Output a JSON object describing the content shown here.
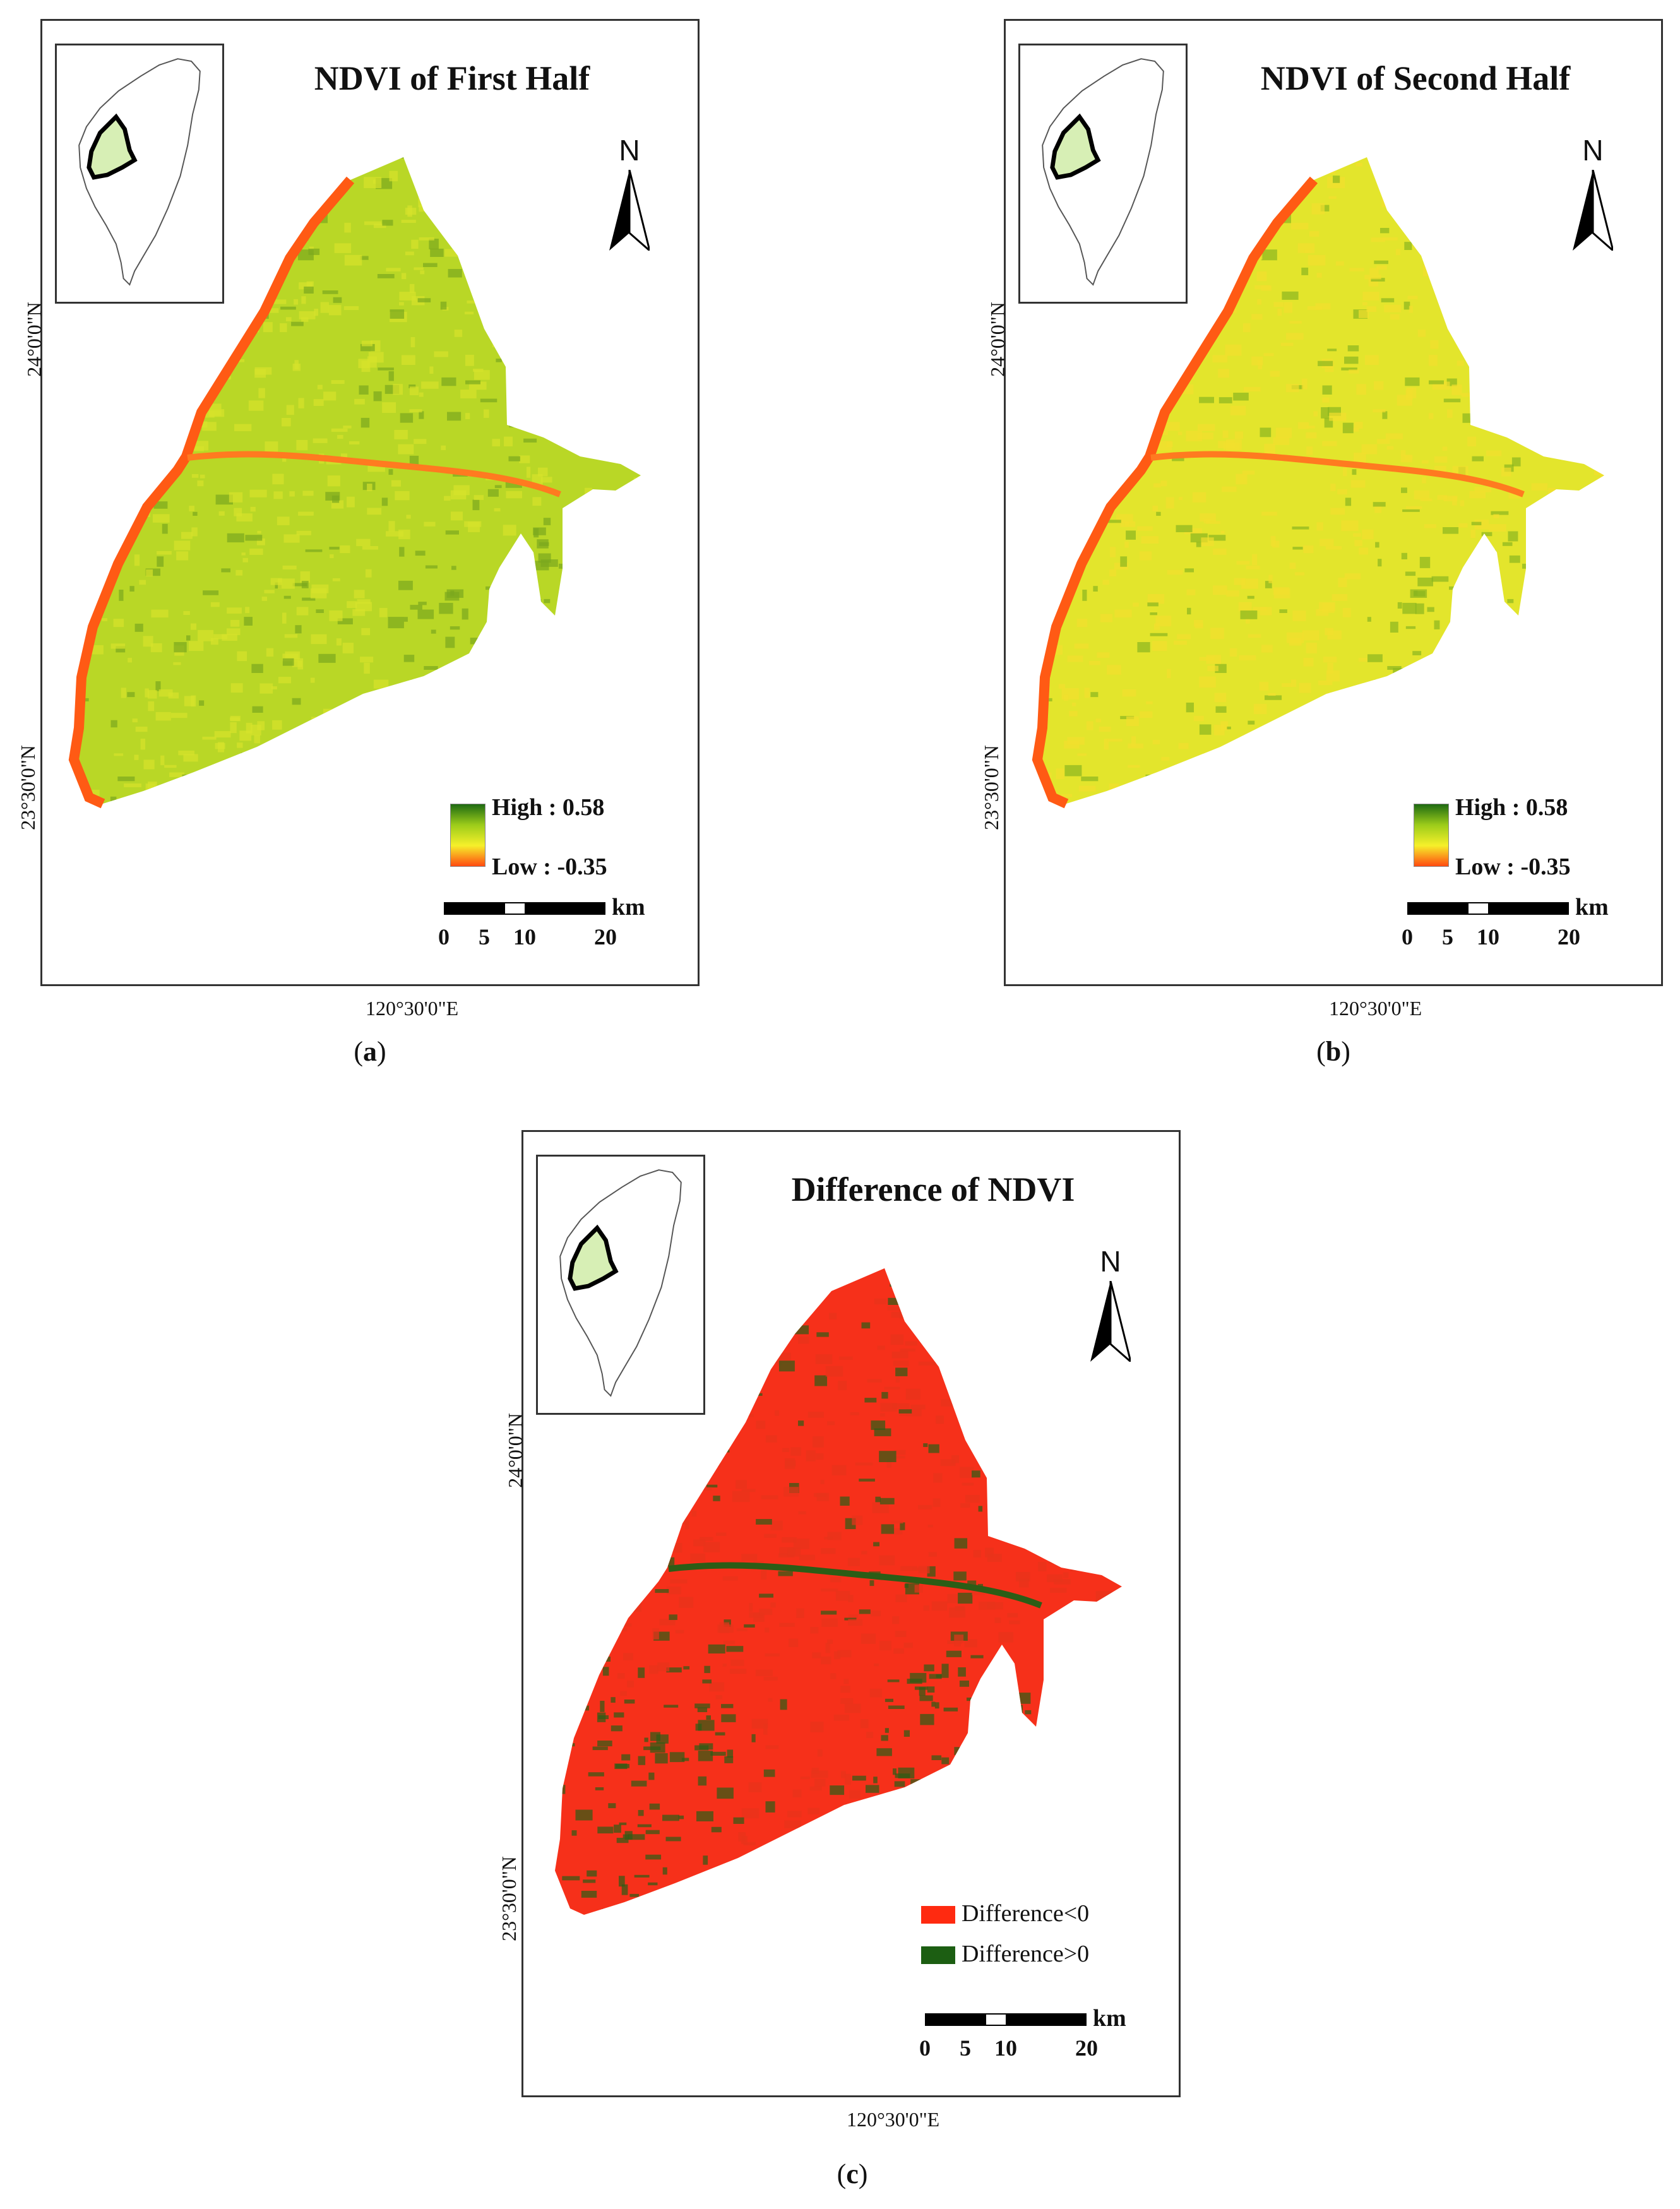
{
  "panels": [
    {
      "id": "a",
      "title": "NDVI of First Half",
      "north_label": "N",
      "lat_labels": [
        "24°0'0\"N",
        "23°30'0\"N"
      ],
      "lon_label": "120°30'0\"E",
      "legend_type": "ramp",
      "legend_high": "High : 0.58",
      "legend_low": "Low : -0.35",
      "ramp_colors": [
        "#1e6b12",
        "#9ccc1a",
        "#f6f02a",
        "#ff4a10"
      ],
      "map_fill": [
        "#b9d726",
        "#d7e22b",
        "#7aa81e"
      ],
      "scale_unit": "km",
      "scale_ticks": [
        "0",
        "5",
        "10",
        "20"
      ],
      "caption_open": "(",
      "caption_letter": "a",
      "caption_close": ")"
    },
    {
      "id": "b",
      "title": "NDVI of Second Half",
      "north_label": "N",
      "lat_labels": [
        "24°0'0\"N",
        "23°30'0\"N"
      ],
      "lon_label": "120°30'0\"E",
      "legend_type": "ramp",
      "legend_high": "High : 0.58",
      "legend_low": "Low : -0.35",
      "ramp_colors": [
        "#1e6b12",
        "#9ccc1a",
        "#f6f02a",
        "#ff4a10"
      ],
      "map_fill": [
        "#e3e52c",
        "#f2e02e",
        "#8ab61f"
      ],
      "scale_unit": "km",
      "scale_ticks": [
        "0",
        "5",
        "10",
        "20"
      ],
      "caption_open": "(",
      "caption_letter": "b",
      "caption_close": ")"
    },
    {
      "id": "c",
      "title": "Difference of NDVI",
      "north_label": "N",
      "lat_labels": [
        "24°0'0\"N",
        "23°30'0\"N"
      ],
      "lon_label": "120°30'0\"E",
      "legend_type": "categorical",
      "legend_items": [
        {
          "label": "Difference<0",
          "color": "#ff2a10"
        },
        {
          "label": "Difference>0",
          "color": "#1c5e12"
        }
      ],
      "map_fill": [
        "#f6301a",
        "#e8331b",
        "#2c5d16"
      ],
      "scale_unit": "km",
      "scale_ticks": [
        "0",
        "5",
        "10",
        "20"
      ],
      "caption_open": "(",
      "caption_letter": "c",
      "caption_close": ")"
    }
  ]
}
